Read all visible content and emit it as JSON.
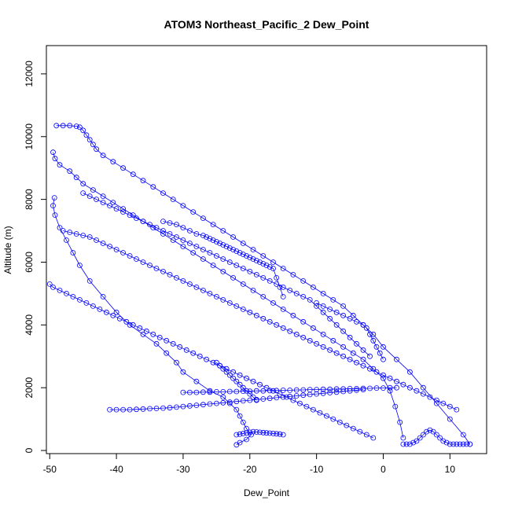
{
  "chart_data": {
    "type": "scatter",
    "title": "ATOM3 Northeast_Pacific_2 Dew_Point",
    "xlabel": "Dew_Point",
    "ylabel": "Altitude (m)",
    "xlim": [
      -50.5,
      15.5
    ],
    "ylim": [
      -100,
      12900
    ],
    "x_ticks": [
      -50,
      -40,
      -30,
      -20,
      -10,
      0,
      10
    ],
    "y_ticks": [
      0,
      2000,
      4000,
      6000,
      8000,
      10000,
      12000
    ],
    "grid": false,
    "legend": "none",
    "color": "#0000ff",
    "style": "points connected by lines",
    "series": [
      {
        "x": [
          -22,
          -21.5,
          -20.5,
          -19.8,
          -20.5,
          -21,
          -21.5,
          -22,
          -23,
          -24,
          -26,
          -28,
          -30,
          -31,
          -32.5,
          -34,
          -36,
          -38,
          -40,
          -42,
          -44,
          -45.5,
          -46.5,
          -47.5,
          -48.5,
          -49.2,
          -49.5,
          -49.3
        ],
        "y": [
          180,
          250,
          350,
          500,
          700,
          900,
          1100,
          1300,
          1500,
          1700,
          1900,
          2200,
          2500,
          2800,
          3100,
          3400,
          3700,
          4000,
          4400,
          4900,
          5400,
          5900,
          6300,
          6700,
          7100,
          7500,
          7800,
          8050
        ]
      },
      {
        "x": [
          -49.5,
          -49.2,
          -48.5,
          -47,
          -46,
          -45,
          -43.5,
          -42,
          -40.5,
          -39,
          -37.5,
          -36,
          -34.5,
          -33,
          -31.5,
          -30,
          -28.5,
          -27,
          -25.5,
          -24,
          -22.5,
          -21,
          -19.5,
          -18,
          -16.5,
          -15,
          -13.5,
          -12,
          -10.5,
          -9,
          -7.5,
          -6,
          -4.5,
          -3,
          -1.5,
          0,
          1,
          1.8,
          2.5,
          3
        ],
        "y": [
          9500,
          9300,
          9100,
          8900,
          8700,
          8500,
          8300,
          8100,
          7900,
          7700,
          7500,
          7300,
          7100,
          6900,
          6700,
          6500,
          6300,
          6100,
          5900,
          5700,
          5500,
          5300,
          5100,
          4900,
          4700,
          4500,
          4300,
          4100,
          3900,
          3700,
          3500,
          3300,
          3100,
          2900,
          2600,
          2300,
          1900,
          1400,
          900,
          400
        ]
      },
      {
        "x": [
          -49,
          -48,
          -47,
          -46,
          -45.5,
          -45,
          -44.5,
          -44,
          -43.5,
          -43,
          -42,
          -40.5,
          -39,
          -37.5,
          -36,
          -34.5,
          -33,
          -31.5,
          -30,
          -28.5,
          -27,
          -25.5,
          -24,
          -22.5,
          -21,
          -19.5,
          -18,
          -16.5,
          -15,
          -13.5,
          -12,
          -10.5,
          -9,
          -7.5,
          -6,
          -4.5,
          -3,
          -1.5,
          0,
          2,
          4,
          6,
          8,
          10,
          12,
          13
        ],
        "y": [
          10350,
          10350,
          10350,
          10330,
          10300,
          10200,
          10050,
          9900,
          9750,
          9600,
          9400,
          9200,
          9000,
          8800,
          8600,
          8400,
          8200,
          8000,
          7800,
          7600,
          7400,
          7200,
          7000,
          6800,
          6600,
          6400,
          6200,
          6000,
          5800,
          5600,
          5400,
          5200,
          5000,
          4800,
          4600,
          4300,
          4000,
          3700,
          3300,
          2900,
          2500,
          2000,
          1500,
          1000,
          500,
          200
        ]
      },
      {
        "x": [
          -50,
          -49.5,
          -48.5,
          -47.5,
          -46.5,
          -45.5,
          -44.5,
          -43.5,
          -42.5,
          -41.5,
          -40.5,
          -39.5,
          -38.5,
          -37.5,
          -36.5,
          -35.5,
          -34.5,
          -33.5,
          -32.5,
          -31.5,
          -30.5,
          -29.5,
          -28.5,
          -27.5,
          -26.5,
          -25.5,
          -24.5,
          -23.5,
          -22.5,
          -21.5,
          -20.5,
          -19.5,
          -18.5,
          -17.5,
          -16.5,
          -15.5,
          -14.5,
          -13.5,
          -12.5,
          -11.5,
          -10.5,
          -9.5,
          -8.5,
          -7.5,
          -6.5,
          -5.5,
          -4.5,
          -3.5,
          -2.5,
          -1.5
        ],
        "y": [
          5300,
          5200,
          5100,
          5000,
          4900,
          4800,
          4700,
          4600,
          4500,
          4400,
          4300,
          4200,
          4100,
          4000,
          3900,
          3800,
          3700,
          3600,
          3500,
          3400,
          3300,
          3200,
          3100,
          3000,
          2900,
          2800,
          2700,
          2600,
          2500,
          2400,
          2300,
          2200,
          2100,
          2000,
          1900,
          1800,
          1700,
          1600,
          1500,
          1400,
          1300,
          1200,
          1100,
          1000,
          900,
          800,
          700,
          600,
          500,
          400
        ]
      },
      {
        "x": [
          -41,
          -40,
          -39,
          -38,
          -37,
          -36,
          -35,
          -34,
          -33,
          -32,
          -31,
          -30,
          -29,
          -28,
          -27,
          -26,
          -25,
          -24,
          -23,
          -22,
          -21,
          -20,
          -19,
          -18,
          -17,
          -16,
          -15,
          -14,
          -13,
          -12,
          -11,
          -10,
          -9,
          -8,
          -7,
          -6,
          -5,
          -4,
          -3
        ],
        "y": [
          1300,
          1300,
          1300,
          1300,
          1310,
          1320,
          1330,
          1340,
          1350,
          1360,
          1380,
          1400,
          1420,
          1440,
          1460,
          1480,
          1500,
          1520,
          1540,
          1560,
          1580,
          1600,
          1620,
          1640,
          1660,
          1680,
          1700,
          1720,
          1740,
          1760,
          1780,
          1800,
          1820,
          1840,
          1860,
          1880,
          1900,
          1920,
          1940
        ]
      },
      {
        "x": [
          -33,
          -32,
          -31,
          -30,
          -29,
          -28,
          -27,
          -26.5,
          -26,
          -25.5,
          -25,
          -24.5,
          -24,
          -23.5,
          -23,
          -22.5,
          -22,
          -21.5,
          -21,
          -20.5,
          -20,
          -19.5,
          -19,
          -18.5,
          -18,
          -17.5,
          -17,
          -16.5,
          -16,
          -15.5,
          -15
        ],
        "y": [
          7300,
          7250,
          7200,
          7100,
          7000,
          6900,
          6850,
          6800,
          6750,
          6700,
          6650,
          6600,
          6550,
          6500,
          6450,
          6400,
          6350,
          6300,
          6250,
          6200,
          6150,
          6100,
          6050,
          6000,
          5950,
          5900,
          5850,
          5800,
          5500,
          5200,
          4900
        ]
      },
      {
        "x": [
          -48,
          -47,
          -46,
          -45,
          -44,
          -43,
          -42,
          -41,
          -40,
          -39,
          -38,
          -37,
          -36,
          -35,
          -34,
          -33,
          -32,
          -31,
          -30,
          -29,
          -28,
          -27,
          -26,
          -25,
          -24,
          -23,
          -22,
          -21,
          -20,
          -19,
          -18,
          -17,
          -16,
          -15,
          -14,
          -13,
          -12,
          -11,
          -10,
          -9,
          -8,
          -7,
          -6,
          -5,
          -4,
          -3,
          -2,
          -1,
          0,
          1,
          2,
          3,
          4,
          5,
          6,
          7,
          8,
          9,
          10,
          11
        ],
        "y": [
          7000,
          6950,
          6900,
          6850,
          6800,
          6700,
          6600,
          6500,
          6400,
          6300,
          6200,
          6100,
          6000,
          5900,
          5800,
          5700,
          5600,
          5500,
          5400,
          5300,
          5200,
          5100,
          5000,
          4900,
          4800,
          4700,
          4600,
          4500,
          4400,
          4300,
          4200,
          4100,
          4000,
          3900,
          3800,
          3700,
          3600,
          3500,
          3400,
          3300,
          3200,
          3100,
          3000,
          2900,
          2800,
          2700,
          2600,
          2500,
          2400,
          2300,
          2200,
          2100,
          2000,
          1900,
          1800,
          1700,
          1600,
          1500,
          1400,
          1300
        ]
      },
      {
        "x": [
          -45,
          -44,
          -43,
          -42,
          -41,
          -40,
          -39,
          -38,
          -37,
          -36,
          -35,
          -34,
          -33,
          -32,
          -31,
          -30,
          -29,
          -28,
          -27,
          -26,
          -25,
          -24,
          -23,
          -22,
          -21,
          -20,
          -19,
          -18,
          -17,
          -16,
          -15,
          -14,
          -13,
          -12,
          -11,
          -10,
          -9,
          -8,
          -7,
          -6,
          -5,
          -4,
          -3,
          -2
        ],
        "y": [
          8200,
          8100,
          8000,
          7900,
          7800,
          7700,
          7600,
          7500,
          7400,
          7300,
          7200,
          7100,
          7000,
          6900,
          6800,
          6700,
          6600,
          6500,
          6400,
          6300,
          6200,
          6100,
          6000,
          5900,
          5800,
          5700,
          5600,
          5500,
          5400,
          5300,
          5200,
          5100,
          5000,
          4900,
          4800,
          4600,
          4400,
          4200,
          4000,
          3800,
          3600,
          3400,
          3200,
          3000
        ]
      },
      {
        "x": [
          -30,
          -29,
          -28,
          -27,
          -26,
          -25,
          -24,
          -23,
          -22,
          -21,
          -20,
          -19,
          -18,
          -17,
          -16,
          -15,
          -14,
          -13,
          -12,
          -11,
          -10,
          -9,
          -8,
          -7,
          -6,
          -5,
          -4,
          -3,
          -2,
          -1,
          0,
          1,
          2
        ],
        "y": [
          1850,
          1850,
          1850,
          1860,
          1860,
          1870,
          1870,
          1880,
          1880,
          1890,
          1890,
          1900,
          1900,
          1910,
          1910,
          1920,
          1920,
          1930,
          1930,
          1940,
          1940,
          1950,
          1950,
          1960,
          1960,
          1970,
          1970,
          1980,
          1980,
          1990,
          1990,
          2000,
          2000
        ]
      },
      {
        "x": [
          -22,
          -21.5,
          -21,
          -20.5,
          -20,
          -19.5,
          -19,
          -18.5,
          -18,
          -17.5,
          -17,
          -16.5,
          -16,
          -15.5,
          -15
        ],
        "y": [
          500,
          520,
          540,
          560,
          580,
          600,
          590,
          580,
          570,
          560,
          550,
          540,
          530,
          520,
          500
        ]
      },
      {
        "x": [
          3,
          3.5,
          4,
          4.5,
          5,
          5.5,
          6,
          6.5,
          7,
          7.5,
          8,
          8.5,
          9,
          9.5,
          10,
          10.5,
          11,
          11.5,
          12,
          12.5,
          13
        ],
        "y": [
          200,
          200,
          200,
          250,
          300,
          400,
          500,
          600,
          650,
          600,
          500,
          400,
          300,
          250,
          200,
          200,
          200,
          200,
          200,
          200,
          200
        ]
      },
      {
        "x": [
          -10,
          -9,
          -8,
          -7,
          -6,
          -5,
          -4,
          -3,
          -2.5,
          -2,
          -1.5,
          -1,
          -0.5,
          0
        ],
        "y": [
          4700,
          4600,
          4500,
          4400,
          4300,
          4200,
          4100,
          4000,
          3900,
          3700,
          3500,
          3300,
          3100,
          2900
        ]
      },
      {
        "x": [
          -25,
          -24.5,
          -24,
          -23.5,
          -23,
          -22.5,
          -22,
          -21.5,
          -21,
          -20.5,
          -20,
          -19.5,
          -19
        ],
        "y": [
          2800,
          2700,
          2600,
          2500,
          2400,
          2300,
          2200,
          2100,
          2000,
          1900,
          1800,
          1700,
          1600
        ]
      }
    ]
  }
}
